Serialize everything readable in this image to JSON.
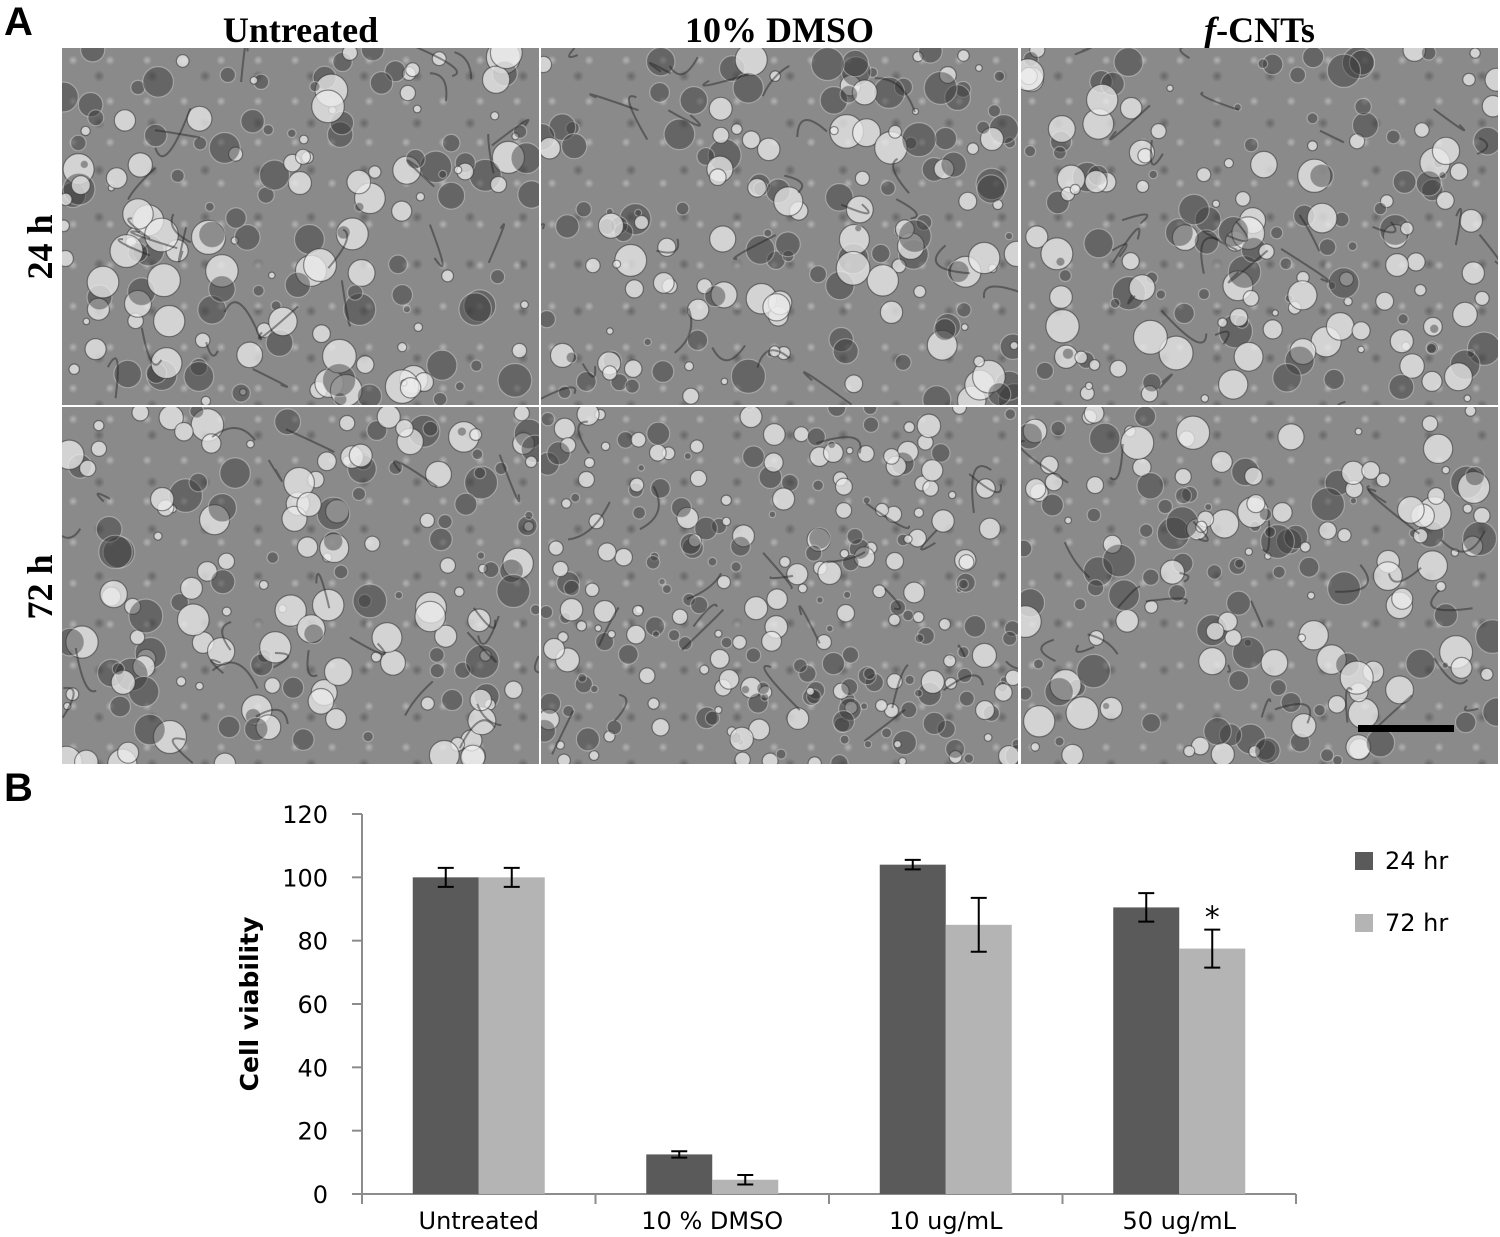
{
  "panel_a": {
    "letter": "A",
    "columns": [
      {
        "label": "Untreated"
      },
      {
        "label": "10% DMSO"
      },
      {
        "label_italic": "f",
        "label_rest": "-CNTs"
      }
    ],
    "rows": [
      {
        "label": "24 h"
      },
      {
        "label": "72 h"
      }
    ],
    "images": [
      {
        "name": "micrograph-untreated-24h",
        "description": "Untreated cells at 24 h"
      },
      {
        "name": "micrograph-dmso-24h",
        "description": "10% DMSO cells at 24 h"
      },
      {
        "name": "micrograph-fcnts-24h",
        "description": "f-CNTs cells at 24 h"
      },
      {
        "name": "micrograph-untreated-72h",
        "description": "Untreated cells at 72 h"
      },
      {
        "name": "micrograph-dmso-72h",
        "description": "10% DMSO cells at 72 h"
      },
      {
        "name": "micrograph-fcnts-72h",
        "description": "f-CNTs cells at 72 h"
      }
    ]
  },
  "panel_b": {
    "letter": "B"
  },
  "colors": {
    "series_24": "#5a5a5a",
    "series_72": "#b4b4b4",
    "axis": "#8c8c8c"
  },
  "chart_data": {
    "type": "bar",
    "categories": [
      "Untreated",
      "10 % DMSO",
      "10 ug/mL",
      "50 ug/mL"
    ],
    "series": [
      {
        "name": "24 hr",
        "values": [
          100,
          12.5,
          104,
          90.5
        ],
        "errors": [
          3,
          1,
          1.5,
          4.5
        ]
      },
      {
        "name": "72 hr",
        "values": [
          100,
          4.5,
          85,
          77.5
        ],
        "errors": [
          3,
          1.5,
          8.5,
          6
        ]
      }
    ],
    "annotations": [
      {
        "category": "50 ug/mL",
        "series": "72 hr",
        "text": "*"
      }
    ],
    "ylabel": "Cell viability",
    "xlabel": "",
    "ylim": [
      0,
      120
    ],
    "yticks": [
      0,
      20,
      40,
      60,
      80,
      100,
      120
    ],
    "legend_position": "right",
    "grid": false
  }
}
